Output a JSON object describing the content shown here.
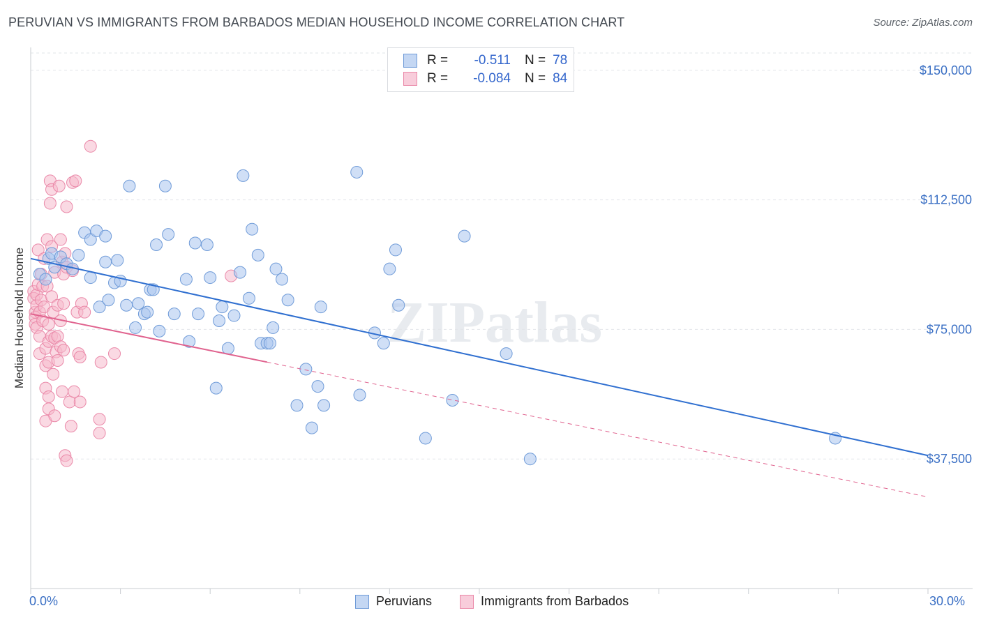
{
  "title": "PERUVIAN VS IMMIGRANTS FROM BARBADOS MEDIAN HOUSEHOLD INCOME CORRELATION CHART",
  "source": "Source: ZipAtlas.com",
  "watermark": "ZIPatlas",
  "legend": {
    "rows": [
      {
        "r_label": "R =",
        "r_value": "-0.511",
        "n_label": "N =",
        "n_value": "78"
      },
      {
        "r_label": "R =",
        "r_value": "-0.084",
        "n_label": "N =",
        "n_value": "84"
      }
    ]
  },
  "bottom_legend": [
    "Peruvians",
    "Immigrants from Barbados"
  ],
  "colors": {
    "blue_fill": "#a9c5ef",
    "blue_stroke": "#6f9bd8",
    "blue_line": "#2f6fd0",
    "pink_fill": "#f6b9cc",
    "pink_stroke": "#ea88a8",
    "pink_line": "#e0628e",
    "axis_text": "#3a6fc4",
    "grid": "#e2e5e9"
  },
  "chart_data": {
    "type": "scatter",
    "title": "PERUVIAN VS IMMIGRANTS FROM BARBADOS MEDIAN HOUSEHOLD INCOME CORRELATION CHART",
    "xlabel": "",
    "ylabel": "Median Household Income",
    "xlim": [
      0,
      30
    ],
    "ylim": [
      0,
      155000
    ],
    "x_tick_labels": [
      "0.0%",
      "30.0%"
    ],
    "y_ticks": [
      37500,
      75000,
      112500,
      150000
    ],
    "y_tick_labels": [
      "$37,500",
      "$75,000",
      "$112,500",
      "$150,000"
    ],
    "grid": true,
    "legend_position": "top-center",
    "series": [
      {
        "name": "Peruvians",
        "color": "#a9c5ef",
        "trend": {
          "x0": 0,
          "y0": 95500,
          "x1": 30,
          "y1": 38500,
          "style": "solid"
        },
        "points": [
          [
            0.3,
            91000
          ],
          [
            0.5,
            89500
          ],
          [
            0.6,
            95500
          ],
          [
            0.7,
            97000
          ],
          [
            0.8,
            93000
          ],
          [
            1.0,
            96000
          ],
          [
            1.2,
            94000
          ],
          [
            1.4,
            92500
          ],
          [
            1.6,
            96500
          ],
          [
            1.8,
            103000
          ],
          [
            2.0,
            101000
          ],
          [
            2.0,
            90000
          ],
          [
            2.2,
            103500
          ],
          [
            2.3,
            81500
          ],
          [
            2.5,
            94500
          ],
          [
            2.5,
            102000
          ],
          [
            2.6,
            83500
          ],
          [
            2.8,
            88500
          ],
          [
            2.9,
            95000
          ],
          [
            3.0,
            89000
          ],
          [
            3.2,
            82000
          ],
          [
            3.3,
            116500
          ],
          [
            3.5,
            75500
          ],
          [
            3.6,
            82500
          ],
          [
            3.8,
            79500
          ],
          [
            3.9,
            80000
          ],
          [
            4.0,
            86500
          ],
          [
            4.1,
            86500
          ],
          [
            4.2,
            99500
          ],
          [
            4.3,
            74500
          ],
          [
            4.5,
            116500
          ],
          [
            4.6,
            102500
          ],
          [
            4.8,
            79500
          ],
          [
            5.2,
            89500
          ],
          [
            5.3,
            71500
          ],
          [
            5.5,
            100000
          ],
          [
            5.6,
            79500
          ],
          [
            5.9,
            99500
          ],
          [
            6.0,
            90000
          ],
          [
            6.2,
            58000
          ],
          [
            6.3,
            77500
          ],
          [
            6.4,
            81500
          ],
          [
            6.6,
            69500
          ],
          [
            6.8,
            79000
          ],
          [
            7.0,
            91500
          ],
          [
            7.1,
            119500
          ],
          [
            7.3,
            84000
          ],
          [
            7.4,
            104000
          ],
          [
            7.6,
            96500
          ],
          [
            7.7,
            71000
          ],
          [
            7.9,
            71000
          ],
          [
            8.0,
            71000
          ],
          [
            8.1,
            75500
          ],
          [
            8.2,
            92500
          ],
          [
            8.4,
            89500
          ],
          [
            8.6,
            83500
          ],
          [
            8.9,
            53000
          ],
          [
            9.2,
            63500
          ],
          [
            9.4,
            46500
          ],
          [
            9.6,
            58500
          ],
          [
            9.7,
            81500
          ],
          [
            9.8,
            53000
          ],
          [
            10.9,
            120500
          ],
          [
            11.0,
            56000
          ],
          [
            11.5,
            74000
          ],
          [
            11.8,
            71000
          ],
          [
            12.0,
            92500
          ],
          [
            12.2,
            98000
          ],
          [
            12.3,
            82000
          ],
          [
            13.2,
            43500
          ],
          [
            14.1,
            54500
          ],
          [
            14.5,
            102000
          ],
          [
            15.9,
            68000
          ],
          [
            16.7,
            37500
          ],
          [
            26.9,
            43500
          ]
        ]
      },
      {
        "name": "Immigrants from Barbados",
        "color": "#f6b9cc",
        "trend": {
          "x0": 0,
          "y0": 79500,
          "x1": 30,
          "y1": 26500,
          "solid_until_x": 7.9
        },
        "points": [
          [
            0.1,
            86000
          ],
          [
            0.1,
            84000
          ],
          [
            0.15,
            80000
          ],
          [
            0.15,
            78500
          ],
          [
            0.15,
            76500
          ],
          [
            0.2,
            75500
          ],
          [
            0.2,
            82000
          ],
          [
            0.2,
            85000
          ],
          [
            0.25,
            98000
          ],
          [
            0.25,
            88000
          ],
          [
            0.3,
            80000
          ],
          [
            0.3,
            73000
          ],
          [
            0.3,
            68000
          ],
          [
            0.35,
            91000
          ],
          [
            0.35,
            83500
          ],
          [
            0.4,
            87500
          ],
          [
            0.4,
            77500
          ],
          [
            0.45,
            95500
          ],
          [
            0.45,
            81500
          ],
          [
            0.5,
            69500
          ],
          [
            0.5,
            64500
          ],
          [
            0.5,
            58000
          ],
          [
            0.5,
            48500
          ],
          [
            0.55,
            101000
          ],
          [
            0.55,
            87500
          ],
          [
            0.6,
            76500
          ],
          [
            0.6,
            71500
          ],
          [
            0.6,
            65500
          ],
          [
            0.6,
            55500
          ],
          [
            0.6,
            52000
          ],
          [
            0.65,
            118000
          ],
          [
            0.65,
            111500
          ],
          [
            0.7,
            115500
          ],
          [
            0.7,
            99000
          ],
          [
            0.7,
            84500
          ],
          [
            0.7,
            73000
          ],
          [
            0.75,
            80000
          ],
          [
            0.75,
            62000
          ],
          [
            0.8,
            91500
          ],
          [
            0.8,
            72500
          ],
          [
            0.8,
            50000
          ],
          [
            0.85,
            68500
          ],
          [
            0.9,
            82000
          ],
          [
            0.9,
            73000
          ],
          [
            0.9,
            66000
          ],
          [
            0.95,
            116500
          ],
          [
            1.0,
            101000
          ],
          [
            1.0,
            77500
          ],
          [
            1.0,
            70000
          ],
          [
            1.05,
            94500
          ],
          [
            1.05,
            57000
          ],
          [
            1.1,
            91000
          ],
          [
            1.1,
            82500
          ],
          [
            1.1,
            69000
          ],
          [
            1.15,
            97000
          ],
          [
            1.15,
            38500
          ],
          [
            1.2,
            110500
          ],
          [
            1.2,
            93000
          ],
          [
            1.2,
            37000
          ],
          [
            1.3,
            54000
          ],
          [
            1.35,
            47000
          ],
          [
            1.4,
            117500
          ],
          [
            1.4,
            92000
          ],
          [
            1.45,
            57000
          ],
          [
            1.5,
            118000
          ],
          [
            1.55,
            80000
          ],
          [
            1.6,
            68000
          ],
          [
            1.65,
            67000
          ],
          [
            1.65,
            54000
          ],
          [
            1.7,
            82500
          ],
          [
            1.8,
            80000
          ],
          [
            2.0,
            128000
          ],
          [
            2.3,
            45000
          ],
          [
            2.3,
            49000
          ],
          [
            2.35,
            65500
          ],
          [
            2.8,
            68000
          ],
          [
            6.7,
            90500
          ]
        ]
      }
    ]
  }
}
